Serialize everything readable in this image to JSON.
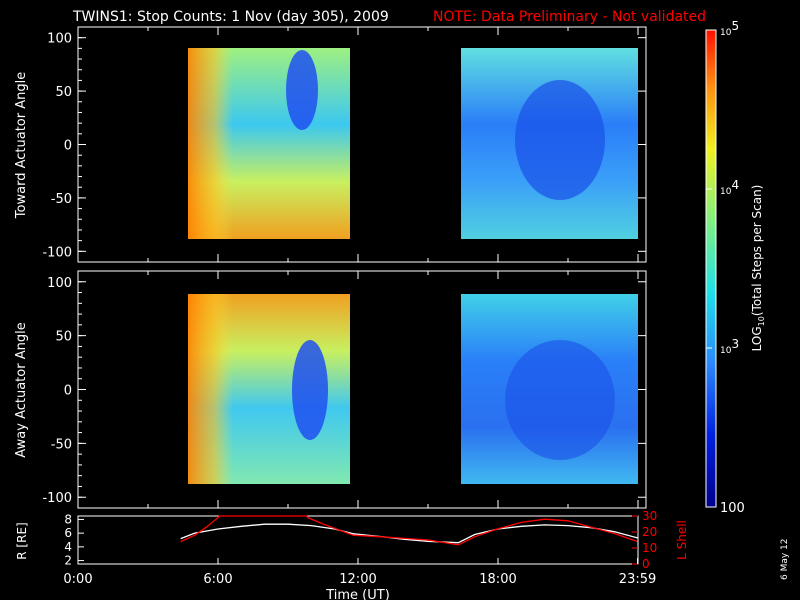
{
  "chart_data": [
    {
      "type": "heatmap",
      "title": "TWINS1: Stop Counts:  1 Nov (day 305), 2009",
      "note": "NOTE: Data Preliminary - Not validated",
      "ylabel": "Toward Actuator Angle",
      "ylim": [
        -110,
        110
      ],
      "yticks": [
        "100",
        "50",
        "0",
        "-50",
        "-100"
      ],
      "ytick_values": [
        100,
        50,
        0,
        -50,
        -100
      ],
      "xlim_hours": [
        0,
        24
      ],
      "data_blocks_hours": [
        [
          4.4,
          11.8
        ],
        [
          16.3,
          23.98
        ]
      ],
      "angle_range": [
        -90,
        90
      ]
    },
    {
      "type": "heatmap",
      "ylabel": "Away Actuator Angle",
      "ylim": [
        -110,
        110
      ],
      "yticks": [
        "100",
        "50",
        "0",
        "-50",
        "-100"
      ],
      "ytick_values": [
        100,
        50,
        0,
        -50,
        -100
      ],
      "xlim_hours": [
        0,
        24
      ],
      "data_blocks_hours": [
        [
          4.4,
          11.8
        ],
        [
          16.3,
          23.98
        ]
      ],
      "angle_range": [
        -90,
        90
      ]
    },
    {
      "type": "line",
      "ylabel": "R [RE]",
      "ylabel_right": "L Shell",
      "yticks_left": [
        "8",
        "6",
        "4",
        "2"
      ],
      "yticks_left_values": [
        8,
        6,
        4,
        2
      ],
      "yticks_right": [
        "30",
        "20",
        "10",
        "0"
      ],
      "yticks_right_values": [
        30,
        20,
        10,
        0
      ],
      "ylim_left": [
        1.5,
        8.5
      ],
      "ylim_right": [
        0,
        30
      ],
      "xlabel": "Time (UT)",
      "xticks": [
        "0:00",
        "6:00",
        "12:00",
        "18:00",
        "23:59"
      ],
      "xtick_hours": [
        0,
        6,
        12,
        18,
        23.98
      ],
      "series": [
        {
          "name": "R",
          "color": "#ffffff",
          "x": [
            4.4,
            5,
            6,
            7,
            8,
            9,
            10,
            11,
            11.8,
            13,
            14,
            15,
            16.3,
            17,
            18,
            19,
            20,
            21,
            22,
            23,
            23.98
          ],
          "values": [
            5.2,
            6.0,
            6.6,
            7.0,
            7.3,
            7.3,
            7.1,
            6.6,
            5.9,
            5.5,
            5.1,
            4.8,
            4.6,
            5.8,
            6.6,
            7.0,
            7.2,
            7.1,
            6.8,
            6.2,
            5.3
          ]
        },
        {
          "name": "L Shell",
          "color": "#ff0000",
          "x": [
            4.4,
            5,
            5.5,
            6,
            6.05,
            9.8,
            9.85,
            10.5,
            11.8,
            13,
            14,
            15,
            16.3,
            17,
            18,
            19,
            20,
            21,
            22,
            23,
            23.98
          ],
          "values": [
            14,
            18,
            23,
            29,
            30,
            30,
            29,
            25,
            18,
            17,
            16,
            15,
            12,
            17,
            22,
            26,
            28,
            27,
            23,
            19,
            14
          ]
        }
      ]
    },
    {
      "type": "colorbar",
      "label": "LOG",
      "label_sub": "10",
      "label_rest": "(Total Steps per Scan)",
      "ticks": [
        {
          "base": "10",
          "exp": "5",
          "value": 100000
        },
        {
          "base": "10",
          "exp": "4",
          "value": 10000
        },
        {
          "base": "10",
          "exp": "3",
          "value": 1000
        },
        {
          "base": "100",
          "exp": "",
          "value": 100
        }
      ],
      "range": [
        100,
        100000
      ]
    }
  ],
  "date_stamp": "6 May 12",
  "colors": {
    "axes": "#ffffff",
    "note": "#ff0000",
    "background": "#000000"
  }
}
